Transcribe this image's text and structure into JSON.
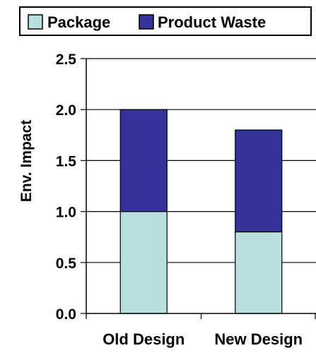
{
  "chart_data": {
    "type": "bar",
    "stacked": true,
    "categories": [
      "Old Design",
      "New Design"
    ],
    "series": [
      {
        "name": "Package",
        "values": [
          1.0,
          0.8
        ],
        "color": "#b9e0e0"
      },
      {
        "name": "Product Waste",
        "values": [
          1.0,
          1.0
        ],
        "color": "#333399"
      }
    ],
    "title": "",
    "xlabel": "",
    "ylabel": "Env. Impact",
    "ylim": [
      0,
      2.5
    ],
    "yticks": [
      "0.0",
      "0.5",
      "1.0",
      "1.5",
      "2.0",
      "2.5"
    ],
    "grid": true,
    "legend_position": "top"
  }
}
